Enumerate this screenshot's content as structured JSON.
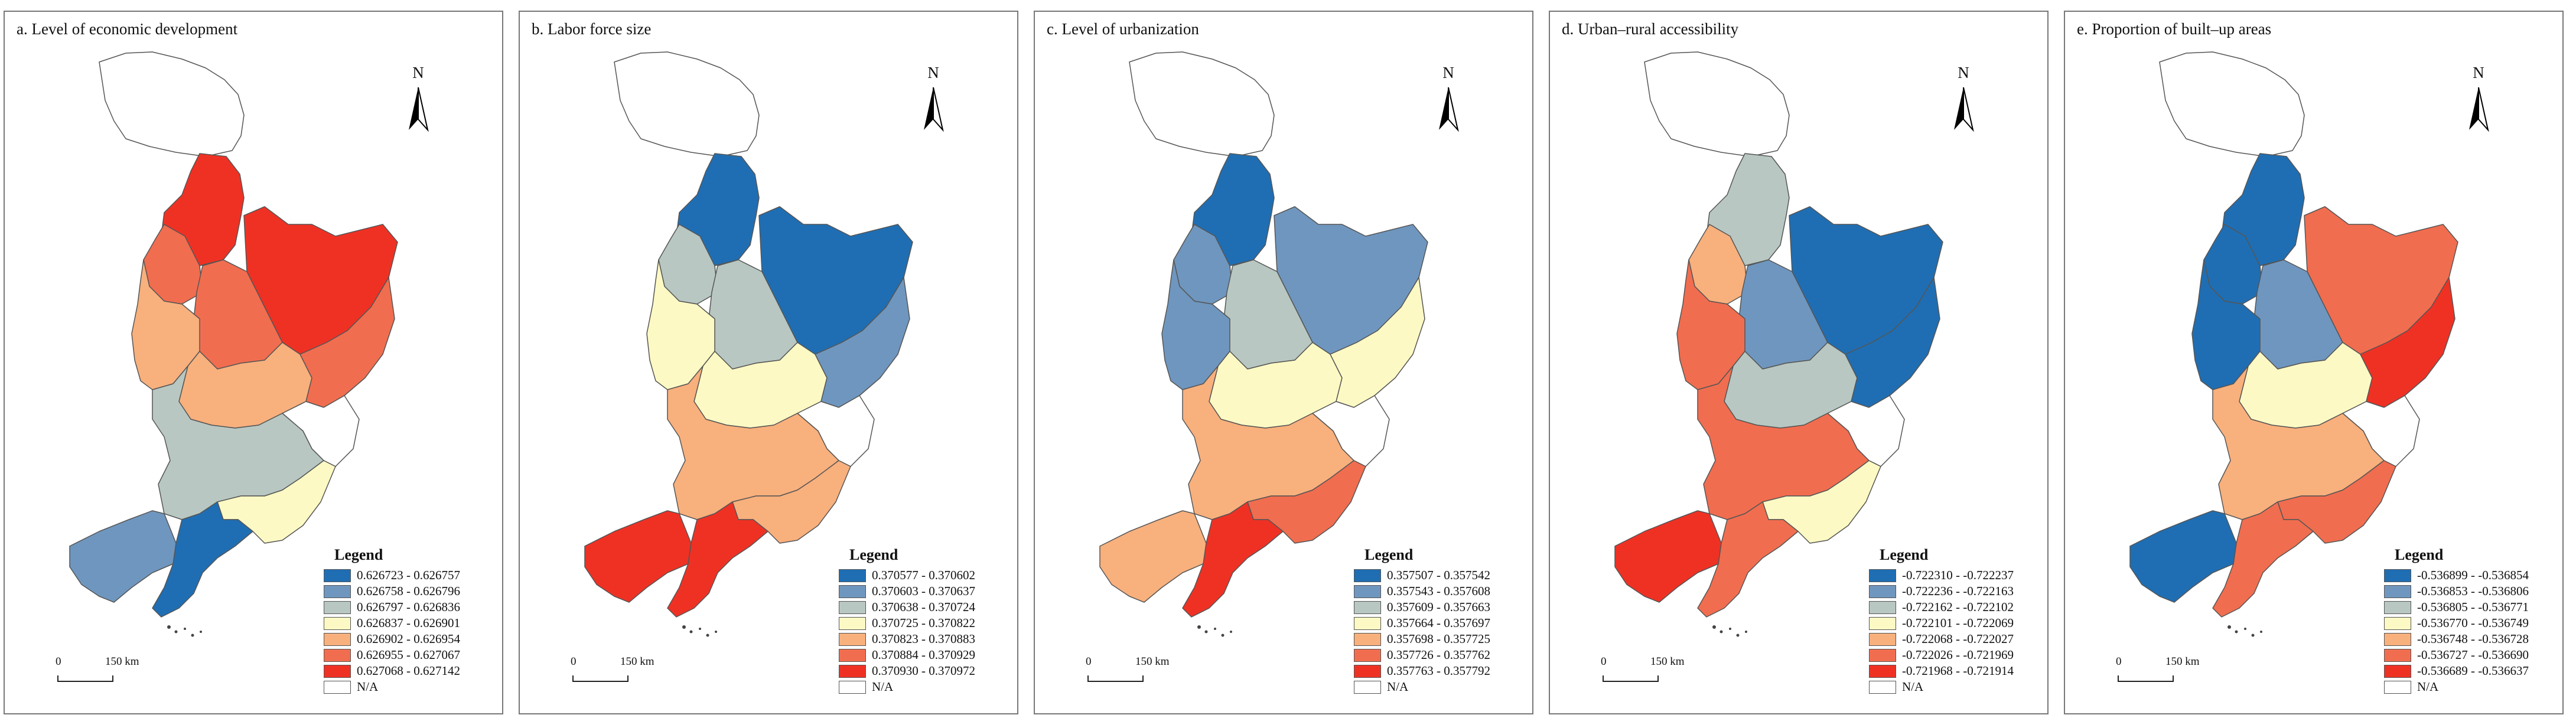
{
  "north_label": "N",
  "legend_title": "Legend",
  "scale": {
    "zero": "0",
    "dist": "150 km"
  },
  "na_label": "N/A",
  "colors": {
    "class1": "#1f6eb3",
    "class2": "#6f96be",
    "class3": "#b8c7c1",
    "class4": "#fdf9c4",
    "class5": "#f8b07d",
    "class6": "#f16d4f",
    "class7": "#ef3124",
    "na": "#ffffff"
  },
  "panels": [
    {
      "title": "a. Level of economic development",
      "legend": [
        "0.626723 - 0.626757",
        "0.626758 - 0.626796",
        "0.626797 - 0.626836",
        "0.626837 - 0.626901",
        "0.626902 - 0.626954",
        "0.626955 - 0.627067",
        "0.627068 - 0.627142"
      ],
      "regions": {
        "north": 7,
        "ne": 7,
        "nw": 6,
        "center": 6,
        "west": 5,
        "mid": 5,
        "east": 6,
        "se": 0,
        "sw": 3,
        "south": 4,
        "dalian": 1,
        "far_sw": 2
      }
    },
    {
      "title": "b. Labor force size",
      "legend": [
        "0.370577 - 0.370602",
        "0.370603 - 0.370637",
        "0.370638 - 0.370724",
        "0.370725 - 0.370822",
        "0.370823 - 0.370883",
        "0.370884 - 0.370929",
        "0.370930 - 0.370972"
      ],
      "regions": {
        "north": 1,
        "ne": 1,
        "nw": 3,
        "center": 3,
        "west": 4,
        "mid": 4,
        "east": 2,
        "se": 0,
        "sw": 5,
        "south": 5,
        "dalian": 7,
        "far_sw": 7
      }
    },
    {
      "title": "c. Level of urbanization",
      "legend": [
        "0.357507 - 0.357542",
        "0.357543 - 0.357608",
        "0.357609 - 0.357663",
        "0.357664 - 0.357697",
        "0.357698 - 0.357725",
        "0.357726 - 0.357762",
        "0.357763 - 0.357792"
      ],
      "regions": {
        "north": 1,
        "ne": 2,
        "nw": 2,
        "center": 3,
        "west": 2,
        "mid": 4,
        "east": 4,
        "se": 0,
        "sw": 5,
        "south": 6,
        "dalian": 7,
        "far_sw": 5
      }
    },
    {
      "title": "d. Urban–rural accessibility",
      "legend": [
        "-0.722310 - -0.722237",
        "-0.722236 - -0.722163",
        "-0.722162 - -0.722102",
        "-0.722101 - -0.722069",
        "-0.722068 - -0.722027",
        "-0.722026 - -0.721969",
        "-0.721968 - -0.721914"
      ],
      "regions": {
        "north": 3,
        "ne": 1,
        "nw": 5,
        "center": 2,
        "west": 6,
        "mid": 3,
        "east": 1,
        "se": 0,
        "sw": 6,
        "south": 4,
        "dalian": 6,
        "far_sw": 7
      }
    },
    {
      "title": "e. Proportion of built–up areas",
      "legend": [
        "-0.536899 - -0.536854",
        "-0.536853 - -0.536806",
        "-0.536805 - -0.536771",
        "-0.536770 - -0.536749",
        "-0.536748 - -0.536728",
        "-0.536727 - -0.536690",
        "-0.536689 - -0.536637"
      ],
      "regions": {
        "north": 1,
        "ne": 6,
        "nw": 1,
        "center": 2,
        "west": 1,
        "mid": 4,
        "east": 7,
        "se": 0,
        "sw": 5,
        "south": 6,
        "dalian": 6,
        "far_sw": 1
      }
    }
  ]
}
